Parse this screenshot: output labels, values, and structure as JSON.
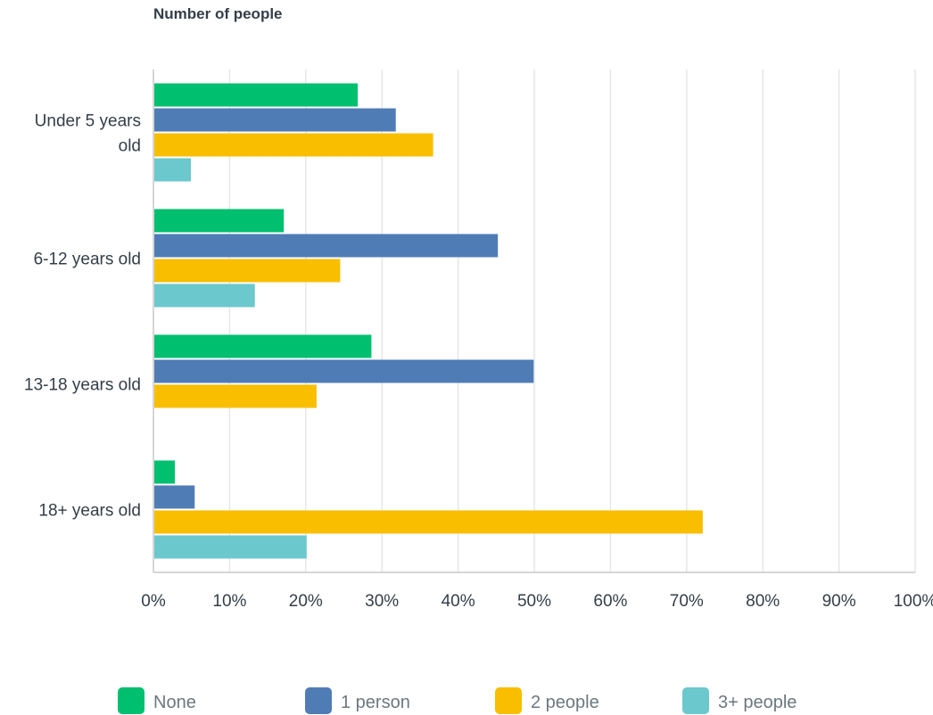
{
  "chart_data": {
    "type": "bar",
    "orientation": "horizontal",
    "title": "Number of people",
    "categories": [
      "Under 5 years old",
      "6-12 years old",
      "13-18 years old",
      "18+ years old"
    ],
    "category_label_lines": [
      [
        "Under 5 years",
        "old"
      ],
      [
        "6-12 years old"
      ],
      [
        "13-18 years old"
      ],
      [
        "18+ years old"
      ]
    ],
    "series": [
      {
        "name": "None",
        "color": "#00bf6f",
        "values": [
          26.7,
          17.0,
          28.5,
          2.7
        ]
      },
      {
        "name": "1 person",
        "color": "#507cb6",
        "values": [
          31.7,
          45.1,
          49.8,
          5.3
        ]
      },
      {
        "name": "2 people",
        "color": "#f9be00",
        "values": [
          36.6,
          24.4,
          21.3,
          72.0
        ]
      },
      {
        "name": "3+ people",
        "color": "#6bc8cd",
        "values": [
          4.8,
          13.2,
          0,
          20.0
        ]
      }
    ],
    "xlim": [
      0,
      100
    ],
    "x_ticks": [
      "0%",
      "10%",
      "20%",
      "30%",
      "40%",
      "50%",
      "60%",
      "70%",
      "80%",
      "90%",
      "100%"
    ],
    "grid": true,
    "legend_position": "bottom",
    "xlabel": "",
    "ylabel": ""
  }
}
